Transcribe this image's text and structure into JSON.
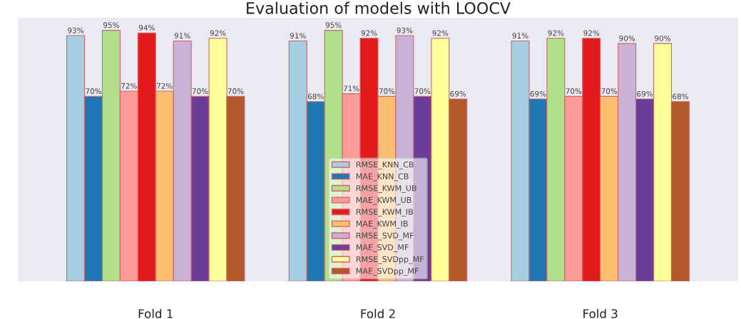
{
  "chart_data": {
    "type": "bar",
    "title": "Evaluation of models with LOOCV",
    "categories": [
      "Fold 1",
      "Fold 2",
      "Fold 3"
    ],
    "series": [
      {
        "name": "RMSE_KNN_CB",
        "color": "#a6cee3",
        "values": [
          93,
          91,
          91
        ],
        "value_labels": [
          "93%",
          "91%",
          "91%"
        ]
      },
      {
        "name": "MAE_KNN_CB",
        "color": "#1f78b4",
        "values": [
          70,
          68,
          69
        ],
        "value_labels": [
          "70%",
          "68%",
          "69%"
        ]
      },
      {
        "name": "RMSE_KWM_UB",
        "color": "#b2df8a",
        "values": [
          95,
          95,
          92
        ],
        "value_labels": [
          "95%",
          "95%",
          "92%"
        ]
      },
      {
        "name": "MAE_KWM_UB",
        "color": "#fb9a99",
        "values": [
          72,
          71,
          70
        ],
        "value_labels": [
          "72%",
          "71%",
          "70%"
        ]
      },
      {
        "name": "RMSE_KWM_IB",
        "color": "#e31a1c",
        "values": [
          94,
          92,
          92
        ],
        "value_labels": [
          "94%",
          "92%",
          "92%"
        ]
      },
      {
        "name": "MAE_KWM_IB",
        "color": "#fdbf6f",
        "values": [
          72,
          70,
          70
        ],
        "value_labels": [
          "72%",
          "70%",
          "70%"
        ]
      },
      {
        "name": "RMSE_SVD_MF",
        "color": "#cab2d6",
        "values": [
          91,
          93,
          90
        ],
        "value_labels": [
          "91%",
          "93%",
          "90%"
        ]
      },
      {
        "name": "MAE_SVD_MF",
        "color": "#6a3d9a",
        "values": [
          70,
          70,
          69
        ],
        "value_labels": [
          "70%",
          "70%",
          "69%"
        ]
      },
      {
        "name": "RMSE_SVDpp_MF",
        "color": "#ffff99",
        "values": [
          92,
          92,
          90
        ],
        "value_labels": [
          "92%",
          "92%",
          "90%"
        ]
      },
      {
        "name": "MAE_SVDpp_MF",
        "color": "#b15928",
        "values": [
          70,
          69,
          68
        ],
        "value_labels": [
          "70%",
          "69%",
          "68%"
        ]
      }
    ],
    "legend": "bottom",
    "grid": false,
    "tick_labels": "x"
  }
}
